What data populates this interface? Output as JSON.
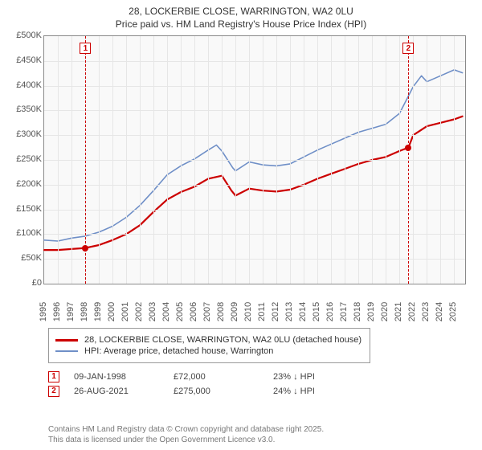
{
  "title_line1": "28, LOCKERBIE CLOSE, WARRINGTON, WA2 0LU",
  "title_line2": "Price paid vs. HM Land Registry's House Price Index (HPI)",
  "chart": {
    "type": "line",
    "background_color": "#f9f9f9",
    "grid_color": "#e6e6e6",
    "axis_color": "#8a8a8a",
    "label_color": "#555555",
    "xlim": [
      1995,
      2025.8
    ],
    "ylim": [
      0,
      500000
    ],
    "ytick_step": 50000,
    "ytick_labels": [
      "£0",
      "£50K",
      "£100K",
      "£150K",
      "£200K",
      "£250K",
      "£300K",
      "£350K",
      "£400K",
      "£450K",
      "£500K"
    ],
    "xtick_step": 1,
    "xtick_labels": [
      "1995",
      "1996",
      "1997",
      "1998",
      "1999",
      "2000",
      "2001",
      "2002",
      "2003",
      "2004",
      "2005",
      "2006",
      "2007",
      "2008",
      "2009",
      "2010",
      "2011",
      "2012",
      "2013",
      "2014",
      "2015",
      "2016",
      "2017",
      "2018",
      "2019",
      "2020",
      "2021",
      "2022",
      "2023",
      "2024",
      "2025"
    ],
    "label_fontsize": 11,
    "line_width_price": 2.2,
    "line_width_hpi": 1.6,
    "series": {
      "price_paid": {
        "label": "28, LOCKERBIE CLOSE, WARRINGTON, WA2 0LU (detached house)",
        "color": "#cc0000",
        "points": [
          [
            1995,
            68000
          ],
          [
            1996,
            68000
          ],
          [
            1997,
            70000
          ],
          [
            1998.02,
            72000
          ],
          [
            1999,
            78000
          ],
          [
            2000,
            88000
          ],
          [
            2001,
            100000
          ],
          [
            2002,
            118000
          ],
          [
            2003,
            145000
          ],
          [
            2004,
            170000
          ],
          [
            2005,
            185000
          ],
          [
            2006,
            196000
          ],
          [
            2007,
            212000
          ],
          [
            2008,
            218000
          ],
          [
            2008.7,
            188000
          ],
          [
            2009,
            178000
          ],
          [
            2010,
            192000
          ],
          [
            2011,
            188000
          ],
          [
            2012,
            186000
          ],
          [
            2013,
            190000
          ],
          [
            2014,
            200000
          ],
          [
            2015,
            212000
          ],
          [
            2016,
            222000
          ],
          [
            2017,
            232000
          ],
          [
            2018,
            242000
          ],
          [
            2019,
            250000
          ],
          [
            2020,
            256000
          ],
          [
            2021,
            268000
          ],
          [
            2021.65,
            275000
          ],
          [
            2022,
            300000
          ],
          [
            2023,
            318000
          ],
          [
            2024,
            325000
          ],
          [
            2025,
            332000
          ],
          [
            2025.6,
            338000
          ]
        ]
      },
      "hpi": {
        "label": "HPI: Average price, detached house, Warrington",
        "color": "#6f8fc7",
        "points": [
          [
            1995,
            88000
          ],
          [
            1996,
            86000
          ],
          [
            1997,
            92000
          ],
          [
            1998,
            96000
          ],
          [
            1999,
            104000
          ],
          [
            2000,
            116000
          ],
          [
            2001,
            134000
          ],
          [
            2002,
            158000
          ],
          [
            2003,
            188000
          ],
          [
            2004,
            220000
          ],
          [
            2005,
            238000
          ],
          [
            2006,
            252000
          ],
          [
            2007,
            270000
          ],
          [
            2007.6,
            280000
          ],
          [
            2008,
            268000
          ],
          [
            2008.8,
            234000
          ],
          [
            2009,
            228000
          ],
          [
            2010,
            246000
          ],
          [
            2011,
            240000
          ],
          [
            2012,
            238000
          ],
          [
            2013,
            242000
          ],
          [
            2014,
            256000
          ],
          [
            2015,
            270000
          ],
          [
            2016,
            282000
          ],
          [
            2017,
            294000
          ],
          [
            2018,
            306000
          ],
          [
            2019,
            314000
          ],
          [
            2020,
            322000
          ],
          [
            2021,
            344000
          ],
          [
            2022,
            398000
          ],
          [
            2022.6,
            420000
          ],
          [
            2023,
            408000
          ],
          [
            2024,
            420000
          ],
          [
            2025,
            432000
          ],
          [
            2025.6,
            426000
          ]
        ]
      }
    },
    "sale_markers": [
      {
        "n": "1",
        "x": 1998.02,
        "y": 72000,
        "color": "#cc0000"
      },
      {
        "n": "2",
        "x": 2021.65,
        "y": 275000,
        "color": "#cc0000"
      }
    ]
  },
  "legend": {
    "s1": "28, LOCKERBIE CLOSE, WARRINGTON, WA2 0LU (detached house)",
    "s2": "HPI: Average price, detached house, Warrington"
  },
  "sales": [
    {
      "n": "1",
      "date": "09-JAN-1998",
      "price": "£72,000",
      "delta": "23% ↓ HPI",
      "color": "#cc0000"
    },
    {
      "n": "2",
      "date": "26-AUG-2021",
      "price": "£275,000",
      "delta": "24% ↓ HPI",
      "color": "#cc0000"
    }
  ],
  "footer_line1": "Contains HM Land Registry data © Crown copyright and database right 2025.",
  "footer_line2": "This data is licensed under the Open Government Licence v3.0."
}
